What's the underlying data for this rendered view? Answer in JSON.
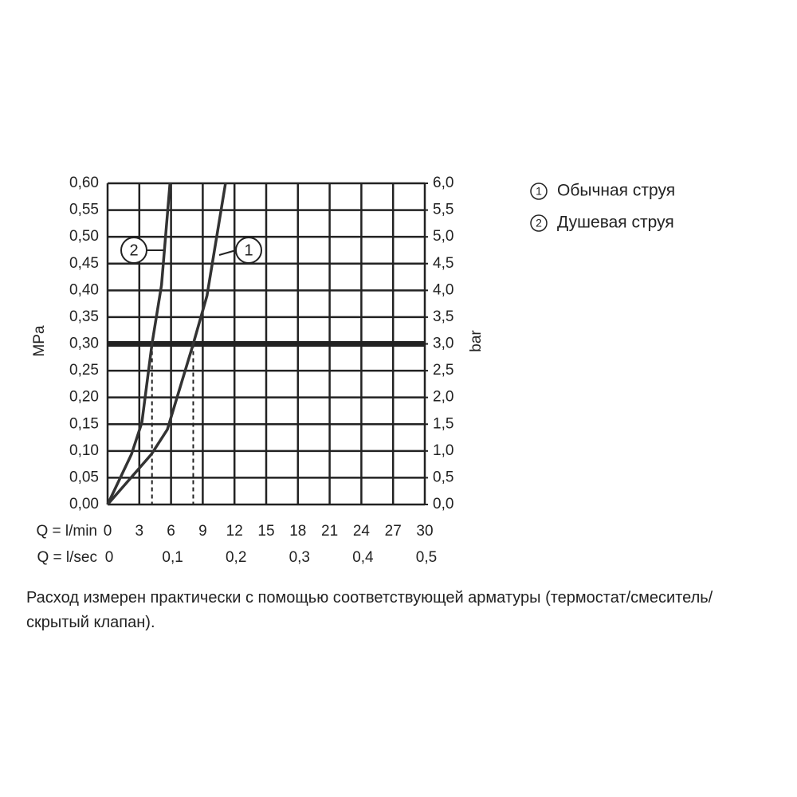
{
  "chart_data": {
    "type": "line",
    "x_label": "Q = l/min",
    "x2_label": "Q = l/sec",
    "y_label": "MPa",
    "y2_label": "bar",
    "xlim": [
      0,
      30
    ],
    "xticks": [
      0,
      3,
      6,
      9,
      12,
      15,
      18,
      21,
      24,
      27,
      30
    ],
    "x2lim": [
      0,
      0.5
    ],
    "x2ticks": [
      0,
      {
        "value": 0.1,
        "label": "0,1"
      },
      {
        "value": 0.2,
        "label": "0,2"
      },
      {
        "value": 0.3,
        "label": "0,3"
      },
      {
        "value": 0.4,
        "label": "0,4"
      },
      {
        "value": 0.5,
        "label": "0,5"
      }
    ],
    "ylim": [
      0,
      0.6
    ],
    "yticks": [
      {
        "value": 0,
        "label": "0,00"
      },
      {
        "value": 0.05,
        "label": "0,05"
      },
      {
        "value": 0.1,
        "label": "0,10"
      },
      {
        "value": 0.15,
        "label": "0,15"
      },
      {
        "value": 0.2,
        "label": "0,20"
      },
      {
        "value": 0.25,
        "label": "0,25"
      },
      {
        "value": 0.3,
        "label": "0,30"
      },
      {
        "value": 0.35,
        "label": "0,35"
      },
      {
        "value": 0.4,
        "label": "0,40"
      },
      {
        "value": 0.45,
        "label": "0,45"
      },
      {
        "value": 0.5,
        "label": "0,50"
      },
      {
        "value": 0.55,
        "label": "0,55"
      },
      {
        "value": 0.6,
        "label": "0,60"
      }
    ],
    "y2lim": [
      0,
      6
    ],
    "y2ticks": [
      {
        "value": 0,
        "label": "0,0"
      },
      {
        "value": 0.5,
        "label": "0,5"
      },
      {
        "value": 1,
        "label": "1,0"
      },
      {
        "value": 1.5,
        "label": "1,5"
      },
      {
        "value": 2,
        "label": "2,0"
      },
      {
        "value": 2.5,
        "label": "2,5"
      },
      {
        "value": 3,
        "label": "3,0"
      },
      {
        "value": 3.5,
        "label": "3,5"
      },
      {
        "value": 4,
        "label": "4,0"
      },
      {
        "value": 4.5,
        "label": "4,5"
      },
      {
        "value": 5,
        "label": "5,0"
      },
      {
        "value": 5.5,
        "label": "5,5"
      },
      {
        "value": 6,
        "label": "6,0"
      }
    ],
    "grid": true,
    "reference_y": 0.3,
    "reference_x": [
      4.2,
      8.1
    ],
    "series": [
      {
        "name": "Обычная струя",
        "label": "1",
        "color": "#333333",
        "x": [
          0,
          4.15,
          5.65,
          8.1,
          9.4,
          11.15
        ],
        "values": [
          0,
          0.094,
          0.14,
          0.3,
          0.39,
          0.6
        ]
      },
      {
        "name": "Душевая струя",
        "label": "2",
        "color": "#333333",
        "x": [
          0,
          2.26,
          3.24,
          4.2,
          5.1,
          5.9
        ],
        "values": [
          0,
          0.094,
          0.153,
          0.3,
          0.41,
          0.6
        ]
      }
    ],
    "note": "Расход измерен практически с помощью соответствующей арматуры (термостат/смеситель/скрытый клапан)."
  }
}
